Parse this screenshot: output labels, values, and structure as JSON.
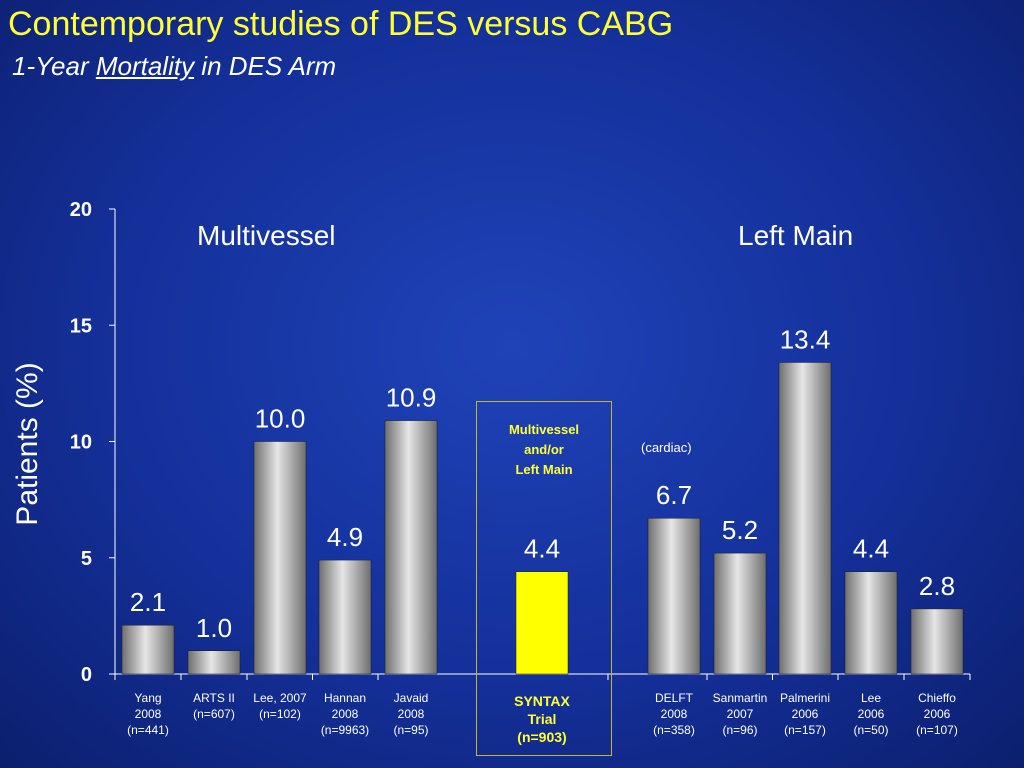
{
  "slide": {
    "title": "Contemporary studies of DES versus CABG",
    "subtitle_pre": "1-Year ",
    "subtitle_underlined": "Mortality",
    "subtitle_post": " in DES Arm"
  },
  "annotations": {
    "multivessel_label": "Multivessel",
    "left_main_label": "Left Main",
    "box_caption_line1": "Multivessel",
    "box_caption_line2": "and/or",
    "box_caption_line3": "Left Main",
    "cardiac_note": "(cardiac)"
  },
  "chart_data": {
    "type": "bar",
    "ylabel": "Patients (%)",
    "ylim": [
      0,
      20
    ],
    "yticks": [
      0,
      5,
      10,
      15,
      20
    ],
    "grid": false,
    "bar_color": "#a8a8a8",
    "highlight_color": "#ffff00",
    "categories": [
      "Yang\n2008\n(n=441)",
      "ARTS II\n(n=607)",
      "Lee, 2007\n(n=102)",
      "Hannan\n2008\n(n=9963)",
      "Javaid\n2008\n(n=95)",
      "SYNTAX\nTrial\n(n=903)",
      "DELFT\n2008\n(n=358)",
      "Sanmartin\n2007\n(n=96)",
      "Palmerini\n2006\n(n=157)",
      "Lee\n2006\n(n=50)",
      "Chieffo\n2006\n(n=107)"
    ],
    "values": [
      2.1,
      1.0,
      10.0,
      4.9,
      10.9,
      4.4,
      6.7,
      5.2,
      13.4,
      4.4,
      2.8
    ],
    "value_labels": [
      "2.1",
      "1.0",
      "10.0",
      "4.9",
      "10.9",
      "4.4",
      "6.7",
      "5.2",
      "13.4",
      "4.4",
      "2.8"
    ],
    "highlight_index": 5
  }
}
